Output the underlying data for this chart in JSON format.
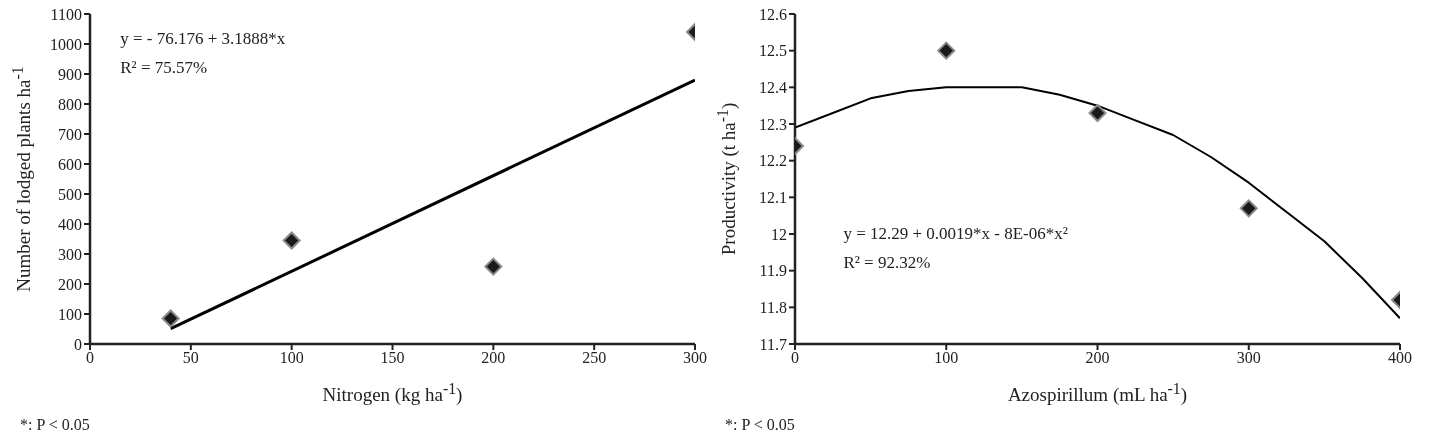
{
  "chart_data": [
    {
      "type": "scatter",
      "xlabel": "Nitrogen (kg ha$^{-1}$)",
      "ylabel": "Number of lodged plants ha$^{-1}$",
      "xlim": [
        0,
        300
      ],
      "xticks": [
        0,
        50,
        100,
        150,
        200,
        250,
        300
      ],
      "ylim": [
        0,
        1100
      ],
      "yticks": [
        0,
        100,
        200,
        300,
        400,
        500,
        600,
        700,
        800,
        900,
        1000,
        1100
      ],
      "grid": false,
      "marker": "diamond",
      "series": [
        {
          "type": "scatter",
          "color": "#1a1a1a",
          "x": [
            40,
            100,
            200,
            300
          ],
          "values": [
            85,
            345,
            258,
            1040
          ]
        },
        {
          "type": "line",
          "color": "#000000",
          "marker": "none",
          "x": [
            40,
            300
          ],
          "values": [
            51,
            880
          ]
        }
      ],
      "annotations": [
        "y = - 76.176 + 3.1888*x",
        "R² = 75.57%",
        "*: P < 0.05"
      ]
    },
    {
      "type": "scatter",
      "xlabel": "Azospirillum (mL ha$^{-1}$)",
      "ylabel": "Productivity (t ha$^{-1}$)",
      "xlim": [
        0,
        400
      ],
      "xticks": [
        0,
        100,
        200,
        300,
        400
      ],
      "ylim": [
        11.7,
        12.6
      ],
      "yticks": [
        11.7,
        11.8,
        11.9,
        {
          "value": 12,
          "label": "12"
        },
        12.1,
        12.2,
        12.3,
        12.4,
        12.5,
        12.6
      ],
      "grid": false,
      "marker": "diamond",
      "series": [
        {
          "type": "scatter",
          "color": "#1a1a1a",
          "x": [
            0,
            100,
            200,
            300,
            400
          ],
          "values": [
            12.24,
            12.5,
            12.33,
            12.07,
            11.82
          ]
        },
        {
          "type": "line",
          "color": "#000000",
          "marker": "none",
          "x": [
            0,
            25,
            50,
            75,
            100,
            125,
            150,
            175,
            200,
            225,
            250,
            275,
            300,
            325,
            350,
            375,
            400
          ],
          "values": [
            12.29,
            12.33,
            12.37,
            12.39,
            12.4,
            12.4,
            12.4,
            12.38,
            12.35,
            12.31,
            12.27,
            12.21,
            12.14,
            12.06,
            11.98,
            11.88,
            11.77
          ]
        }
      ],
      "annotations": [
        "y = 12.29 + 0.0019*x - 8E-06*x²",
        "R² = 92.32%",
        "*: P < 0.05"
      ]
    }
  ]
}
